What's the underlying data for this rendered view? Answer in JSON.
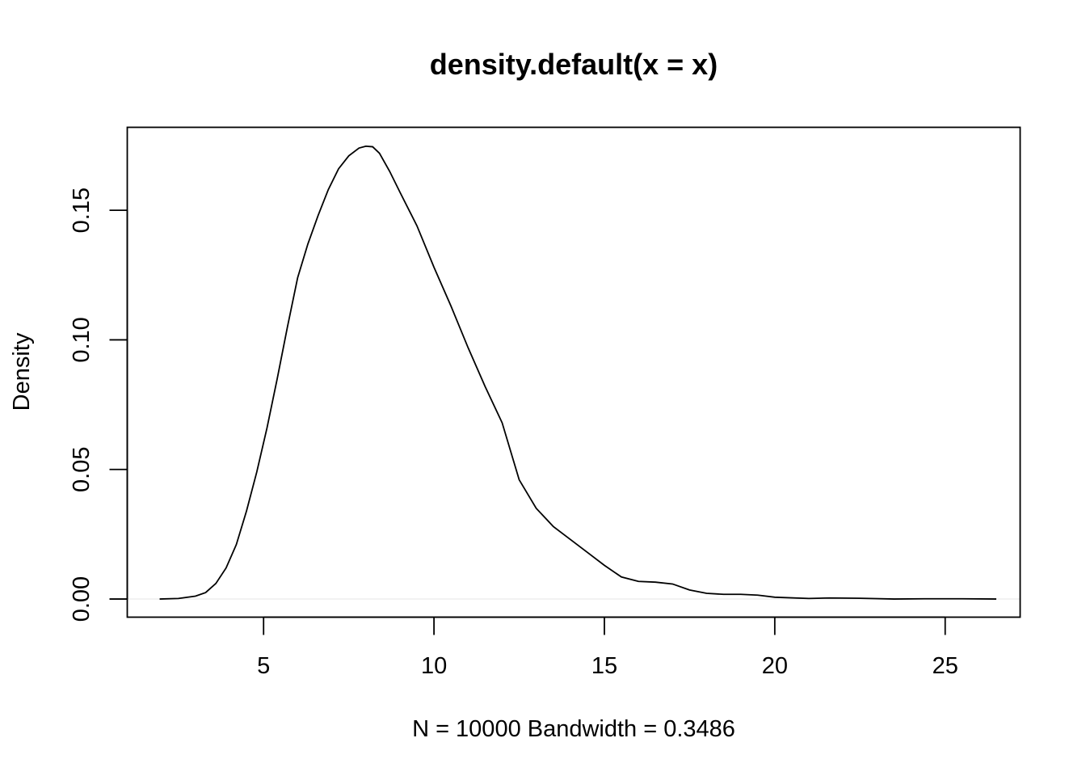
{
  "chart_data": {
    "type": "line",
    "title": "density.default(x = x)",
    "xlabel": "N = 10000   Bandwidth = 0.3486",
    "ylabel": "Density",
    "xlim": [
      1.0,
      27.2
    ],
    "ylim": [
      -0.007,
      0.182
    ],
    "x_ticks": [
      5,
      10,
      15,
      20,
      25
    ],
    "x_tick_labels": [
      "5",
      "10",
      "15",
      "20",
      "25"
    ],
    "y_ticks": [
      0.0,
      0.05,
      0.1,
      0.15
    ],
    "y_tick_labels": [
      "0.00",
      "0.05",
      "0.10",
      "0.15"
    ],
    "zero_line": true,
    "grid": false,
    "series": [
      {
        "color": "#000000",
        "x": [
          1.95,
          2.5,
          3.0,
          3.3,
          3.6,
          3.9,
          4.2,
          4.5,
          4.8,
          5.1,
          5.4,
          5.7,
          6.0,
          6.3,
          6.6,
          6.9,
          7.2,
          7.5,
          7.8,
          8.0,
          8.2,
          8.4,
          8.7,
          9.0,
          9.5,
          10.0,
          10.5,
          11.0,
          11.5,
          12.0,
          12.5,
          13.0,
          13.5,
          14.0,
          14.5,
          15.0,
          15.5,
          16.0,
          16.5,
          17.0,
          17.5,
          18.0,
          18.5,
          19.0,
          19.5,
          20.0,
          21.0,
          21.6,
          22.5,
          23.5,
          24.5,
          25.5,
          26.5
        ],
        "y": [
          0.0,
          0.0002,
          0.0011,
          0.0025,
          0.006,
          0.012,
          0.021,
          0.034,
          0.049,
          0.066,
          0.085,
          0.105,
          0.124,
          0.137,
          0.148,
          0.158,
          0.166,
          0.171,
          0.174,
          0.1747,
          0.1745,
          0.172,
          0.165,
          0.157,
          0.144,
          0.128,
          0.113,
          0.097,
          0.082,
          0.068,
          0.046,
          0.035,
          0.028,
          0.023,
          0.018,
          0.013,
          0.0085,
          0.0068,
          0.0065,
          0.0058,
          0.0035,
          0.0022,
          0.0018,
          0.0018,
          0.0015,
          0.0007,
          0.0002,
          0.0004,
          0.0003,
          0.0,
          0.0001,
          0.0001,
          0.0
        ]
      }
    ]
  }
}
